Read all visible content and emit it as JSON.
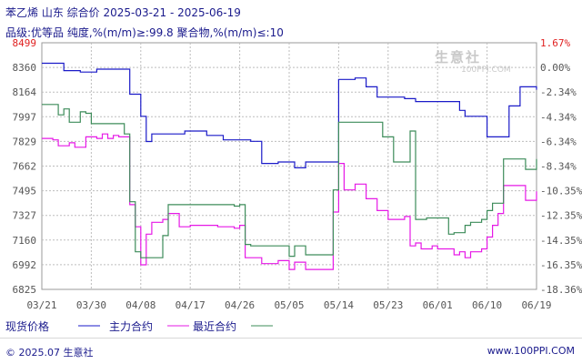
{
  "header": {
    "title": "苯乙烯 山东 综合价 2025-03-21 - 2025-06-19",
    "subtitle": "品级:优等品 纯度,%(m/m)≥:99.8 聚合物,%(m/m)≤:10"
  },
  "watermark": {
    "brand": "生意社",
    "url": "100PPI.COM"
  },
  "legend": {
    "items": [
      {
        "label": "现货价格",
        "color": "#1a1ac8"
      },
      {
        "label": "主力合约",
        "color": "#e619e6"
      },
      {
        "label": "最近合约",
        "color": "#3d8c5a"
      }
    ]
  },
  "footer": {
    "left": "© 2025.07 生意社",
    "right": "www.100PPI.COM"
  },
  "chart_data": {
    "type": "line",
    "x_tick_labels": [
      "03/21",
      "03/30",
      "04/08",
      "04/17",
      "04/26",
      "05/05",
      "05/14",
      "05/23",
      "06/01",
      "06/10",
      "06/19"
    ],
    "y_left_tick_labels": [
      "8499",
      "8360",
      "8164",
      "7997",
      "7829",
      "7662",
      "7495",
      "7327",
      "7160",
      "6992",
      "6825"
    ],
    "y_right_tick_labels": [
      "1.67%",
      "0.00%",
      "-2.34%",
      "-4.34%",
      "-6.34%",
      "-8.34%",
      "-10.35%",
      "-12.35%",
      "-14.35%",
      "-16.35%",
      "-18.36%"
    ],
    "ylim": [
      6825,
      8499
    ],
    "grid": true,
    "series": [
      {
        "name": "现货价格",
        "color": "#1a1ac8",
        "points": [
          [
            "03/21",
            8360
          ],
          [
            "03/23",
            8360
          ],
          [
            "03/25",
            8310
          ],
          [
            "03/28",
            8300
          ],
          [
            "03/31",
            8320
          ],
          [
            "04/05",
            8320
          ],
          [
            "04/06",
            8150
          ],
          [
            "04/08",
            8000
          ],
          [
            "04/09",
            7829
          ],
          [
            "04/10",
            7880
          ],
          [
            "04/14",
            7880
          ],
          [
            "04/16",
            7900
          ],
          [
            "04/20",
            7870
          ],
          [
            "04/23",
            7840
          ],
          [
            "04/28",
            7830
          ],
          [
            "04/30",
            7680
          ],
          [
            "05/03",
            7690
          ],
          [
            "05/06",
            7650
          ],
          [
            "05/08",
            7690
          ],
          [
            "05/12",
            7690
          ],
          [
            "05/14",
            8250
          ],
          [
            "05/17",
            8260
          ],
          [
            "05/19",
            8200
          ],
          [
            "05/21",
            8130
          ],
          [
            "05/26",
            8120
          ],
          [
            "05/28",
            8100
          ],
          [
            "06/04",
            8100
          ],
          [
            "06/05",
            8040
          ],
          [
            "06/06",
            8000
          ],
          [
            "06/09",
            8000
          ],
          [
            "06/10",
            7860
          ],
          [
            "06/11",
            7860
          ],
          [
            "06/12",
            7860
          ],
          [
            "06/14",
            8070
          ],
          [
            "06/15",
            8070
          ],
          [
            "06/16",
            8200
          ],
          [
            "06/18",
            8200
          ],
          [
            "06/19",
            8180
          ]
        ]
      },
      {
        "name": "主力合约",
        "color": "#e619e6",
        "points": [
          [
            "03/21",
            7850
          ],
          [
            "03/23",
            7840
          ],
          [
            "03/24",
            7800
          ],
          [
            "03/26",
            7820
          ],
          [
            "03/27",
            7790
          ],
          [
            "03/29",
            7860
          ],
          [
            "03/31",
            7850
          ],
          [
            "04/01",
            7880
          ],
          [
            "04/02",
            7850
          ],
          [
            "04/03",
            7870
          ],
          [
            "04/04",
            7860
          ],
          [
            "04/05",
            7860
          ],
          [
            "04/06",
            7400
          ],
          [
            "04/07",
            7250
          ],
          [
            "04/08",
            6992
          ],
          [
            "04/09",
            7200
          ],
          [
            "04/10",
            7280
          ],
          [
            "04/12",
            7300
          ],
          [
            "04/13",
            7340
          ],
          [
            "04/15",
            7250
          ],
          [
            "04/17",
            7260
          ],
          [
            "04/22",
            7250
          ],
          [
            "04/25",
            7240
          ],
          [
            "04/26",
            7260
          ],
          [
            "04/27",
            7040
          ],
          [
            "04/30",
            7000
          ],
          [
            "05/03",
            7020
          ],
          [
            "05/05",
            6960
          ],
          [
            "05/06",
            7010
          ],
          [
            "05/08",
            6960
          ],
          [
            "05/12",
            6960
          ],
          [
            "05/13",
            7350
          ],
          [
            "05/14",
            7680
          ],
          [
            "05/15",
            7500
          ],
          [
            "05/17",
            7540
          ],
          [
            "05/19",
            7440
          ],
          [
            "05/21",
            7360
          ],
          [
            "05/23",
            7300
          ],
          [
            "05/26",
            7320
          ],
          [
            "05/27",
            7120
          ],
          [
            "05/28",
            7140
          ],
          [
            "05/29",
            7100
          ],
          [
            "05/31",
            7120
          ],
          [
            "06/01",
            7100
          ],
          [
            "06/04",
            7060
          ],
          [
            "06/05",
            7080
          ],
          [
            "06/06",
            7040
          ],
          [
            "06/07",
            7080
          ],
          [
            "06/09",
            7100
          ],
          [
            "06/10",
            7180
          ],
          [
            "06/11",
            7260
          ],
          [
            "06/12",
            7340
          ],
          [
            "06/13",
            7530
          ],
          [
            "06/16",
            7530
          ],
          [
            "06/17",
            7430
          ],
          [
            "06/19",
            7490
          ]
        ]
      },
      {
        "name": "最近合约",
        "color": "#3d8c5a",
        "points": [
          [
            "03/21",
            8080
          ],
          [
            "03/23",
            8080
          ],
          [
            "03/24",
            8010
          ],
          [
            "03/25",
            8050
          ],
          [
            "03/26",
            7960
          ],
          [
            "03/28",
            8030
          ],
          [
            "03/29",
            8020
          ],
          [
            "03/30",
            7950
          ],
          [
            "04/05",
            7880
          ],
          [
            "04/06",
            7420
          ],
          [
            "04/07",
            7080
          ],
          [
            "04/08",
            7040
          ],
          [
            "04/11",
            7040
          ],
          [
            "04/12",
            7190
          ],
          [
            "04/13",
            7400
          ],
          [
            "04/24",
            7400
          ],
          [
            "04/25",
            7390
          ],
          [
            "04/26",
            7400
          ],
          [
            "04/27",
            7130
          ],
          [
            "04/28",
            7120
          ],
          [
            "05/04",
            7120
          ],
          [
            "05/05",
            7050
          ],
          [
            "05/06",
            7120
          ],
          [
            "05/07",
            7120
          ],
          [
            "05/08",
            7060
          ],
          [
            "05/12",
            7060
          ],
          [
            "05/13",
            7500
          ],
          [
            "05/14",
            7960
          ],
          [
            "05/20",
            7960
          ],
          [
            "05/22",
            7860
          ],
          [
            "05/24",
            7690
          ],
          [
            "05/26",
            7690
          ],
          [
            "05/27",
            7900
          ],
          [
            "05/28",
            7300
          ],
          [
            "05/30",
            7310
          ],
          [
            "06/01",
            7310
          ],
          [
            "06/03",
            7200
          ],
          [
            "06/04",
            7210
          ],
          [
            "06/06",
            7260
          ],
          [
            "06/07",
            7280
          ],
          [
            "06/09",
            7300
          ],
          [
            "06/10",
            7360
          ],
          [
            "06/11",
            7410
          ],
          [
            "06/13",
            7710
          ],
          [
            "06/16",
            7710
          ],
          [
            "06/17",
            7640
          ],
          [
            "06/19",
            7710
          ]
        ]
      }
    ]
  }
}
